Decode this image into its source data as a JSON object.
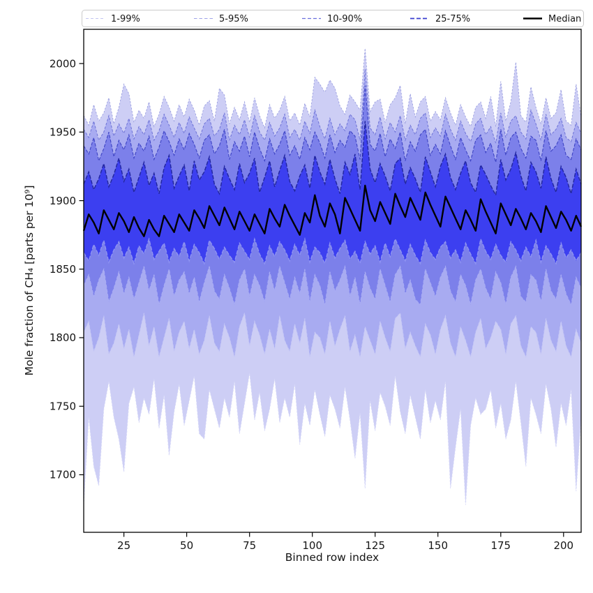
{
  "figure": {
    "kind": "percentile-fan-chart",
    "background": "#ffffff"
  },
  "legend": {
    "position": "top",
    "items": [
      {
        "label": "1-99%",
        "color": "#c3c6f0",
        "width": 1.0,
        "dash": "4 3"
      },
      {
        "label": "5-95%",
        "color": "#9fa3ea",
        "width": 1.1,
        "dash": "4.5 3"
      },
      {
        "label": "10-90%",
        "color": "#6a6fdd",
        "width": 1.3,
        "dash": "5 3"
      },
      {
        "label": "25-75%",
        "color": "#3a3ecf",
        "width": 1.8,
        "dash": "6 3"
      },
      {
        "label": "Median",
        "color": "#000000",
        "width": 2.6,
        "dash": ""
      }
    ]
  },
  "chart_data": {
    "type": "area",
    "title": "",
    "xlabel": "Binned row index",
    "ylabel": "Mole fraction of CH₄ [parts per 10⁹]",
    "xlim": [
      9,
      207
    ],
    "ylim": [
      1658,
      2025
    ],
    "xticks": [
      25,
      50,
      75,
      100,
      125,
      150,
      175,
      200
    ],
    "yticks": [
      1700,
      1750,
      1800,
      1850,
      1900,
      1950,
      2000
    ],
    "grid": false,
    "legend_position": "top",
    "x": [
      9,
      11,
      13,
      15,
      17,
      19,
      21,
      23,
      25,
      27,
      29,
      31,
      33,
      35,
      37,
      39,
      41,
      43,
      45,
      47,
      49,
      51,
      53,
      55,
      57,
      59,
      61,
      63,
      65,
      67,
      69,
      71,
      73,
      75,
      77,
      79,
      81,
      83,
      85,
      87,
      89,
      91,
      93,
      95,
      97,
      99,
      101,
      103,
      105,
      107,
      109,
      111,
      113,
      115,
      117,
      119,
      121,
      123,
      125,
      127,
      129,
      131,
      133,
      135,
      137,
      139,
      141,
      143,
      145,
      147,
      149,
      151,
      153,
      155,
      157,
      159,
      161,
      163,
      165,
      167,
      169,
      171,
      173,
      175,
      177,
      179,
      181,
      183,
      185,
      187,
      189,
      191,
      193,
      195,
      197,
      199,
      201,
      203,
      205,
      207
    ],
    "bands": [
      {
        "id": "1-99",
        "name": "1-99%",
        "low_percentile": 1,
        "high_percentile": 99,
        "fill": "#cdcef5",
        "edge_high": "#9b9fe0",
        "edge_low": "#d6d8f8",
        "dash": "2.5 2.2",
        "edge_width": 0.9,
        "low": [
          1678,
          1742,
          1706,
          1692,
          1748,
          1768,
          1742,
          1726,
          1702,
          1752,
          1764,
          1738,
          1756,
          1744,
          1770,
          1734,
          1758,
          1714,
          1746,
          1766,
          1736,
          1754,
          1772,
          1730,
          1726,
          1762,
          1748,
          1734,
          1756,
          1742,
          1768,
          1730,
          1752,
          1774,
          1740,
          1760,
          1732,
          1748,
          1770,
          1738,
          1756,
          1742,
          1766,
          1722,
          1752,
          1736,
          1762,
          1744,
          1728,
          1758,
          1748,
          1734,
          1764,
          1740,
          1712,
          1745,
          1690,
          1754,
          1732,
          1760,
          1750,
          1736,
          1772,
          1746,
          1730,
          1758,
          1742,
          1726,
          1762,
          1738,
          1754,
          1740,
          1768,
          1690,
          1720,
          1748,
          1678,
          1736,
          1756,
          1744,
          1748,
          1762,
          1734,
          1752,
          1726,
          1740,
          1768,
          1738,
          1706,
          1756,
          1744,
          1730,
          1766,
          1748,
          1720,
          1752,
          1736,
          1762,
          1688,
          1742
        ],
        "high": [
          1962,
          1955,
          1970,
          1958,
          1964,
          1975,
          1956,
          1968,
          1985,
          1978,
          1957,
          1966,
          1960,
          1972,
          1954,
          1963,
          1976,
          1968,
          1958,
          1970,
          1961,
          1974,
          1966,
          1955,
          1969,
          1973,
          1958,
          1982,
          1977,
          1956,
          1968,
          1959,
          1972,
          1957,
          1975,
          1962,
          1953,
          1970,
          1960,
          1966,
          1976,
          1958,
          1964,
          1955,
          1971,
          1961,
          1990,
          1985,
          1979,
          1988,
          1982,
          1969,
          1963,
          1977,
          1972,
          1966,
          2011,
          1965,
          1972,
          1974,
          1957,
          1970,
          1975,
          1984,
          1956,
          1978,
          1961,
          1972,
          1976,
          1958,
          1965,
          1959,
          1975,
          1964,
          1955,
          1970,
          1961,
          1954,
          1968,
          1972,
          1960,
          1976,
          1954,
          1987,
          1958,
          1972,
          2001,
          1962,
          1957,
          1983,
          1968,
          1956,
          1975,
          1960,
          1964,
          1981,
          1958,
          1955,
          1985,
          1961
        ]
      },
      {
        "id": "5-95",
        "name": "5-95%",
        "low_percentile": 5,
        "high_percentile": 95,
        "fill": "#a8abf1",
        "edge_high": "#6d72d6",
        "edge_low": "#c4c6f6",
        "dash": "3.5 2.2",
        "edge_width": 1,
        "low": [
          1804,
          1812,
          1790,
          1800,
          1816,
          1788,
          1796,
          1810,
          1792,
          1806,
          1786,
          1802,
          1818,
          1794,
          1808,
          1786,
          1800,
          1814,
          1790,
          1804,
          1812,
          1792,
          1806,
          1788,
          1798,
          1816,
          1796,
          1790,
          1810,
          1800,
          1786,
          1808,
          1818,
          1794,
          1812,
          1802,
          1788,
          1806,
          1792,
          1816,
          1798,
          1790,
          1810,
          1796,
          1814,
          1786,
          1804,
          1800,
          1788,
          1812,
          1794,
          1806,
          1816,
          1790,
          1802,
          1786,
          1808,
          1798,
          1788,
          1812,
          1800,
          1790,
          1814,
          1818,
          1792,
          1804,
          1794,
          1786,
          1810,
          1802,
          1788,
          1806,
          1816,
          1796,
          1786,
          1808,
          1798,
          1786,
          1804,
          1814,
          1792,
          1800,
          1812,
          1806,
          1788,
          1810,
          1816,
          1794,
          1786,
          1808,
          1804,
          1788,
          1814,
          1798,
          1790,
          1812,
          1794,
          1786,
          1806,
          1796
        ],
        "high": [
          1952,
          1946,
          1958,
          1944,
          1950,
          1962,
          1947,
          1956,
          1949,
          1960,
          1945,
          1954,
          1948,
          1959,
          1944,
          1951,
          1963,
          1955,
          1946,
          1957,
          1949,
          1961,
          1953,
          1945,
          1956,
          1960,
          1947,
          1952,
          1964,
          1944,
          1955,
          1948,
          1959,
          1946,
          1962,
          1950,
          1944,
          1957,
          1947,
          1953,
          1963,
          1946,
          1952,
          1944,
          1958,
          1949,
          1966,
          1954,
          1945,
          1960,
          1948,
          1956,
          1951,
          1963,
          1959,
          1944,
          1996,
          1953,
          1948,
          1961,
          1945,
          1957,
          1950,
          1962,
          1944,
          1955,
          1948,
          1960,
          1964,
          1946,
          1953,
          1947,
          1963,
          1952,
          1944,
          1958,
          1949,
          1943,
          1956,
          1960,
          1948,
          1954,
          1942,
          1964,
          1946,
          1958,
          1962,
          1950,
          1945,
          1966,
          1956,
          1944,
          1963,
          1948,
          1952,
          1960,
          1946,
          1943,
          1957,
          1949
        ]
      },
      {
        "id": "10-90",
        "name": "10-90%",
        "low_percentile": 10,
        "high_percentile": 90,
        "fill": "#7c80ea",
        "edge_high": "#3d43c4",
        "edge_low": "#a9acf4",
        "dash": "4.5 2.2",
        "edge_width": 1.1,
        "low": [
          1838,
          1846,
          1830,
          1842,
          1850,
          1826,
          1836,
          1848,
          1832,
          1844,
          1828,
          1840,
          1852,
          1834,
          1846,
          1824,
          1838,
          1850,
          1830,
          1842,
          1848,
          1832,
          1844,
          1826,
          1840,
          1852,
          1834,
          1828,
          1846,
          1836,
          1824,
          1842,
          1850,
          1830,
          1846,
          1838,
          1826,
          1848,
          1834,
          1852,
          1840,
          1828,
          1844,
          1832,
          1850,
          1826,
          1846,
          1838,
          1824,
          1848,
          1834,
          1842,
          1852,
          1830,
          1844,
          1824,
          1848,
          1836,
          1828,
          1850,
          1838,
          1826,
          1846,
          1852,
          1832,
          1842,
          1828,
          1824,
          1850,
          1840,
          1830,
          1844,
          1852,
          1834,
          1826,
          1846,
          1838,
          1824,
          1842,
          1850,
          1836,
          1828,
          1848,
          1840,
          1824,
          1844,
          1852,
          1830,
          1826,
          1846,
          1842,
          1826,
          1850,
          1834,
          1828,
          1846,
          1832,
          1824,
          1844,
          1836
        ],
        "high": [
          1940,
          1934,
          1946,
          1929,
          1938,
          1950,
          1932,
          1944,
          1937,
          1948,
          1931,
          1942,
          1936,
          1947,
          1930,
          1939,
          1951,
          1943,
          1933,
          1945,
          1937,
          1949,
          1941,
          1931,
          1944,
          1948,
          1934,
          1940,
          1952,
          1930,
          1943,
          1936,
          1947,
          1932,
          1950,
          1938,
          1929,
          1945,
          1934,
          1941,
          1951,
          1933,
          1940,
          1930,
          1946,
          1937,
          1950,
          1942,
          1931,
          1948,
          1935,
          1944,
          1939,
          1951,
          1947,
          1930,
          1984,
          1941,
          1936,
          1949,
          1932,
          1945,
          1938,
          1950,
          1929,
          1943,
          1936,
          1948,
          1952,
          1933,
          1941,
          1934,
          1951,
          1940,
          1930,
          1946,
          1937,
          1929,
          1944,
          1948,
          1935,
          1942,
          1928,
          1952,
          1933,
          1946,
          1950,
          1938,
          1931,
          1947,
          1944,
          1929,
          1951,
          1936,
          1940,
          1948,
          1933,
          1930,
          1945,
          1937
        ]
      },
      {
        "id": "25-75",
        "name": "25-75%",
        "low_percentile": 25,
        "high_percentile": 75,
        "fill": "#3c3ff0",
        "edge_high": "#22269e",
        "edge_low": "#8f93f2",
        "dash": "5.5 2.4",
        "edge_width": 1.4,
        "low": [
          1862,
          1856,
          1868,
          1860,
          1871,
          1855,
          1864,
          1870,
          1858,
          1866,
          1854,
          1867,
          1861,
          1872,
          1857,
          1863,
          1869,
          1855,
          1865,
          1859,
          1870,
          1856,
          1868,
          1862,
          1854,
          1871,
          1865,
          1857,
          1866,
          1860,
          1855,
          1869,
          1863,
          1857,
          1872,
          1861,
          1854,
          1867,
          1859,
          1870,
          1864,
          1856,
          1868,
          1860,
          1872,
          1855,
          1866,
          1862,
          1854,
          1869,
          1858,
          1865,
          1871,
          1857,
          1863,
          1854,
          1870,
          1861,
          1867,
          1855,
          1869,
          1859,
          1872,
          1864,
          1856,
          1868,
          1860,
          1854,
          1871,
          1862,
          1857,
          1866,
          1870,
          1858,
          1864,
          1855,
          1869,
          1861,
          1854,
          1872,
          1863,
          1857,
          1868,
          1860,
          1855,
          1870,
          1864,
          1856,
          1866,
          1859,
          1871,
          1855,
          1867,
          1861,
          1854,
          1869,
          1858,
          1864,
          1856,
          1862
        ],
        "high": [
          1912,
          1921,
          1908,
          1916,
          1927,
          1910,
          1919,
          1931,
          1914,
          1923,
          1906,
          1917,
          1928,
          1911,
          1920,
          1905,
          1924,
          1933,
          1909,
          1918,
          1926,
          1907,
          1929,
          1915,
          1921,
          1932,
          1912,
          1905,
          1925,
          1916,
          1908,
          1927,
          1913,
          1920,
          1931,
          1906,
          1917,
          1929,
          1910,
          1922,
          1933,
          1914,
          1907,
          1918,
          1926,
          1909,
          1933,
          1921,
          1912,
          1930,
          1916,
          1905,
          1928,
          1919,
          1934,
          1908,
          1958,
          1923,
          1913,
          1927,
          1918,
          1907,
          1927,
          1931,
          1912,
          1924,
          1916,
          1906,
          1932,
          1921,
          1910,
          1925,
          1934,
          1917,
          1908,
          1920,
          1929,
          1913,
          1906,
          1926,
          1919,
          1911,
          1904,
          1930,
          1915,
          1923,
          1935,
          1918,
          1907,
          1928,
          1921,
          1909,
          1932,
          1916,
          1906,
          1925,
          1917,
          1905,
          1923,
          1912
        ]
      }
    ],
    "median": {
      "label": "Median",
      "color": "#000000",
      "width": 2.4,
      "values": [
        1878,
        1890,
        1884,
        1876,
        1893,
        1886,
        1879,
        1891,
        1885,
        1877,
        1888,
        1880,
        1874,
        1886,
        1879,
        1874,
        1889,
        1883,
        1877,
        1890,
        1884,
        1878,
        1893,
        1887,
        1880,
        1896,
        1889,
        1882,
        1895,
        1887,
        1879,
        1892,
        1885,
        1878,
        1890,
        1883,
        1876,
        1894,
        1887,
        1881,
        1897,
        1889,
        1882,
        1875,
        1891,
        1884,
        1904,
        1889,
        1881,
        1898,
        1890,
        1876,
        1902,
        1894,
        1886,
        1878,
        1911,
        1893,
        1885,
        1899,
        1891,
        1883,
        1905,
        1896,
        1888,
        1902,
        1894,
        1886,
        1906,
        1897,
        1889,
        1881,
        1903,
        1895,
        1887,
        1879,
        1893,
        1886,
        1878,
        1901,
        1892,
        1884,
        1876,
        1898,
        1890,
        1882,
        1894,
        1887,
        1879,
        1891,
        1885,
        1877,
        1896,
        1888,
        1880,
        1892,
        1886,
        1878,
        1889,
        1881
      ]
    }
  }
}
